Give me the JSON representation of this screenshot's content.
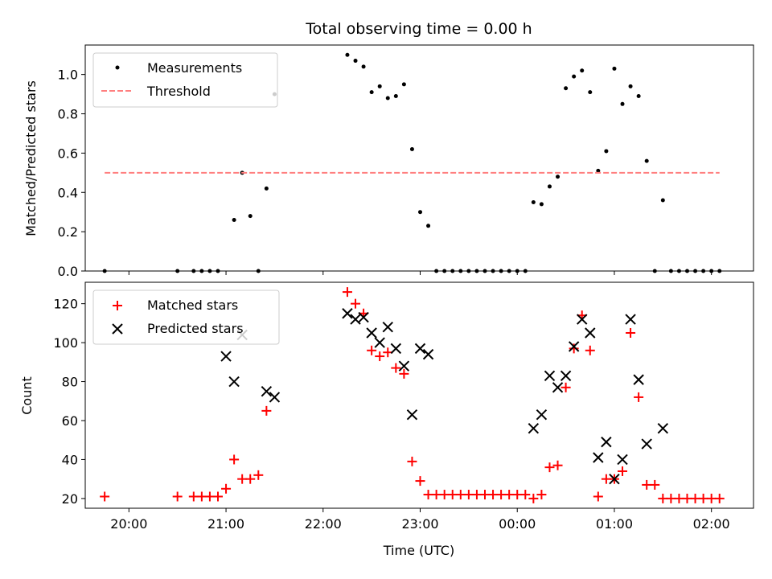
{
  "chart_data": [
    {
      "type": "scatter",
      "title": "Total observing time = 0.00 h",
      "xlabel": "",
      "ylabel": "Matched/Predicted stars",
      "xlim": [
        "19:33",
        "02:26"
      ],
      "ylim": [
        0,
        1.15
      ],
      "yticks": [
        "0.0",
        "0.2",
        "0.4",
        "0.6",
        "0.8",
        "1.0"
      ],
      "legend_position": "upper-left",
      "series": [
        {
          "name": "Measurements",
          "marker": "dot",
          "color": "#000000",
          "points": [
            [
              "19:45",
              0.0
            ],
            [
              "20:30",
              0.0
            ],
            [
              "20:40",
              0.0
            ],
            [
              "20:45",
              0.0
            ],
            [
              "20:50",
              0.0
            ],
            [
              "20:55",
              0.0
            ],
            [
              "21:05",
              0.26
            ],
            [
              "21:10",
              0.5
            ],
            [
              "21:15",
              0.28
            ],
            [
              "21:20",
              0.0
            ],
            [
              "21:25",
              0.42
            ],
            [
              "21:30",
              0.9
            ],
            [
              "22:15",
              1.1
            ],
            [
              "22:20",
              1.07
            ],
            [
              "22:25",
              1.04
            ],
            [
              "22:30",
              0.91
            ],
            [
              "22:35",
              0.94
            ],
            [
              "22:40",
              0.88
            ],
            [
              "22:45",
              0.89
            ],
            [
              "22:50",
              0.95
            ],
            [
              "22:55",
              0.62
            ],
            [
              "23:00",
              0.3
            ],
            [
              "23:05",
              0.23
            ],
            [
              "23:10",
              0.0
            ],
            [
              "23:15",
              0.0
            ],
            [
              "23:20",
              0.0
            ],
            [
              "23:25",
              0.0
            ],
            [
              "23:30",
              0.0
            ],
            [
              "23:35",
              0.0
            ],
            [
              "23:40",
              0.0
            ],
            [
              "23:45",
              0.0
            ],
            [
              "23:50",
              0.0
            ],
            [
              "23:55",
              0.0
            ],
            [
              "00:00",
              0.0
            ],
            [
              "00:05",
              0.0
            ],
            [
              "00:10",
              0.35
            ],
            [
              "00:15",
              0.34
            ],
            [
              "00:20",
              0.43
            ],
            [
              "00:25",
              0.48
            ],
            [
              "00:30",
              0.93
            ],
            [
              "00:35",
              0.99
            ],
            [
              "00:40",
              1.02
            ],
            [
              "00:45",
              0.91
            ],
            [
              "00:50",
              0.51
            ],
            [
              "00:55",
              0.61
            ],
            [
              "01:00",
              1.03
            ],
            [
              "01:05",
              0.85
            ],
            [
              "01:10",
              0.94
            ],
            [
              "01:15",
              0.89
            ],
            [
              "01:20",
              0.56
            ],
            [
              "01:25",
              0.0
            ],
            [
              "01:30",
              0.36
            ],
            [
              "01:35",
              0.0
            ],
            [
              "01:40",
              0.0
            ],
            [
              "01:45",
              0.0
            ],
            [
              "01:50",
              0.0
            ],
            [
              "01:55",
              0.0
            ],
            [
              "02:00",
              0.0
            ],
            [
              "02:05",
              0.0
            ]
          ]
        },
        {
          "name": "Threshold",
          "marker": "dashed-line",
          "color": "#ff7f7f",
          "points": [
            [
              "19:45",
              0.5
            ],
            [
              "02:05",
              0.5
            ]
          ]
        }
      ]
    },
    {
      "type": "scatter",
      "title": "",
      "xlabel": "Time (UTC)",
      "ylabel": "Count",
      "xlim": [
        "19:33",
        "02:26"
      ],
      "ylim": [
        15,
        131
      ],
      "yticks": [
        "20",
        "40",
        "60",
        "80",
        "100",
        "120"
      ],
      "xticks": [
        "20:00",
        "21:00",
        "22:00",
        "23:00",
        "00:00",
        "01:00",
        "02:00"
      ],
      "legend_position": "upper-left",
      "series": [
        {
          "name": "Matched stars",
          "marker": "plus",
          "color": "#ff0000",
          "points": [
            [
              "19:45",
              21
            ],
            [
              "20:30",
              21
            ],
            [
              "20:40",
              21
            ],
            [
              "20:45",
              21
            ],
            [
              "20:50",
              21
            ],
            [
              "20:55",
              21
            ],
            [
              "21:00",
              25
            ],
            [
              "21:05",
              40
            ],
            [
              "21:10",
              30
            ],
            [
              "21:15",
              30
            ],
            [
              "21:20",
              32
            ],
            [
              "21:25",
              65
            ],
            [
              "22:15",
              126
            ],
            [
              "22:20",
              120
            ],
            [
              "22:25",
              115
            ],
            [
              "22:30",
              96
            ],
            [
              "22:35",
              93
            ],
            [
              "22:40",
              95
            ],
            [
              "22:45",
              87
            ],
            [
              "22:50",
              84
            ],
            [
              "22:55",
              39
            ],
            [
              "23:00",
              29
            ],
            [
              "23:05",
              22
            ],
            [
              "23:10",
              22
            ],
            [
              "23:15",
              22
            ],
            [
              "23:20",
              22
            ],
            [
              "23:25",
              22
            ],
            [
              "23:30",
              22
            ],
            [
              "23:35",
              22
            ],
            [
              "23:40",
              22
            ],
            [
              "23:45",
              22
            ],
            [
              "23:50",
              22
            ],
            [
              "23:55",
              22
            ],
            [
              "00:00",
              22
            ],
            [
              "00:05",
              22
            ],
            [
              "00:10",
              20
            ],
            [
              "00:15",
              22
            ],
            [
              "00:20",
              36
            ],
            [
              "00:25",
              37
            ],
            [
              "00:30",
              77
            ],
            [
              "00:35",
              97
            ],
            [
              "00:40",
              114
            ],
            [
              "00:45",
              96
            ],
            [
              "00:50",
              21
            ],
            [
              "00:55",
              30
            ],
            [
              "01:00",
              30
            ],
            [
              "01:05",
              34
            ],
            [
              "01:10",
              105
            ],
            [
              "01:15",
              72
            ],
            [
              "01:20",
              27
            ],
            [
              "01:25",
              27
            ],
            [
              "01:30",
              20
            ],
            [
              "01:35",
              20
            ],
            [
              "01:40",
              20
            ],
            [
              "01:45",
              20
            ],
            [
              "01:50",
              20
            ],
            [
              "01:55",
              20
            ],
            [
              "02:00",
              20
            ],
            [
              "02:05",
              20
            ]
          ]
        },
        {
          "name": "Predicted stars",
          "marker": "x",
          "color": "#000000",
          "points": [
            [
              "21:00",
              93
            ],
            [
              "21:05",
              80
            ],
            [
              "21:10",
              104
            ],
            [
              "21:25",
              75
            ],
            [
              "21:30",
              72
            ],
            [
              "22:15",
              115
            ],
            [
              "22:20",
              112
            ],
            [
              "22:25",
              113
            ],
            [
              "22:30",
              105
            ],
            [
              "22:35",
              100
            ],
            [
              "22:40",
              108
            ],
            [
              "22:45",
              97
            ],
            [
              "22:50",
              88
            ],
            [
              "22:55",
              63
            ],
            [
              "23:00",
              97
            ],
            [
              "23:05",
              94
            ],
            [
              "00:10",
              56
            ],
            [
              "00:15",
              63
            ],
            [
              "00:20",
              83
            ],
            [
              "00:25",
              77
            ],
            [
              "00:30",
              83
            ],
            [
              "00:35",
              98
            ],
            [
              "00:40",
              112
            ],
            [
              "00:45",
              105
            ],
            [
              "00:50",
              41
            ],
            [
              "00:55",
              49
            ],
            [
              "01:00",
              30
            ],
            [
              "01:05",
              40
            ],
            [
              "01:10",
              112
            ],
            [
              "01:15",
              81
            ],
            [
              "01:20",
              48
            ],
            [
              "01:30",
              56
            ]
          ]
        }
      ]
    }
  ]
}
